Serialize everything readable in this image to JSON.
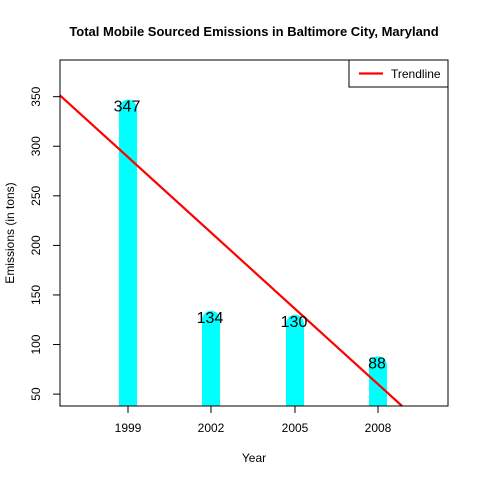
{
  "chart_data": {
    "type": "bar",
    "title": "Total Mobile Sourced Emissions in Baltimore City, Maryland",
    "xlabel": "Year",
    "ylabel": "Emissions (in tons)",
    "categories": [
      "1999",
      "2002",
      "2005",
      "2008"
    ],
    "values": [
      347,
      134,
      130,
      88
    ],
    "data_labels": [
      "347",
      "134",
      "130",
      "88"
    ],
    "ylim": [
      38,
      387
    ],
    "yticks": [
      50,
      100,
      150,
      200,
      250,
      300,
      350
    ],
    "trendline": {
      "name": "Trendline",
      "start": {
        "x": "1999",
        "y": 289
      },
      "end": {
        "x": "2008",
        "y": 60
      },
      "color": "#ff0000"
    },
    "bar_color": "#00ffff",
    "legend": {
      "position": "top-right",
      "entries": [
        "Trendline"
      ]
    },
    "grid": false
  }
}
